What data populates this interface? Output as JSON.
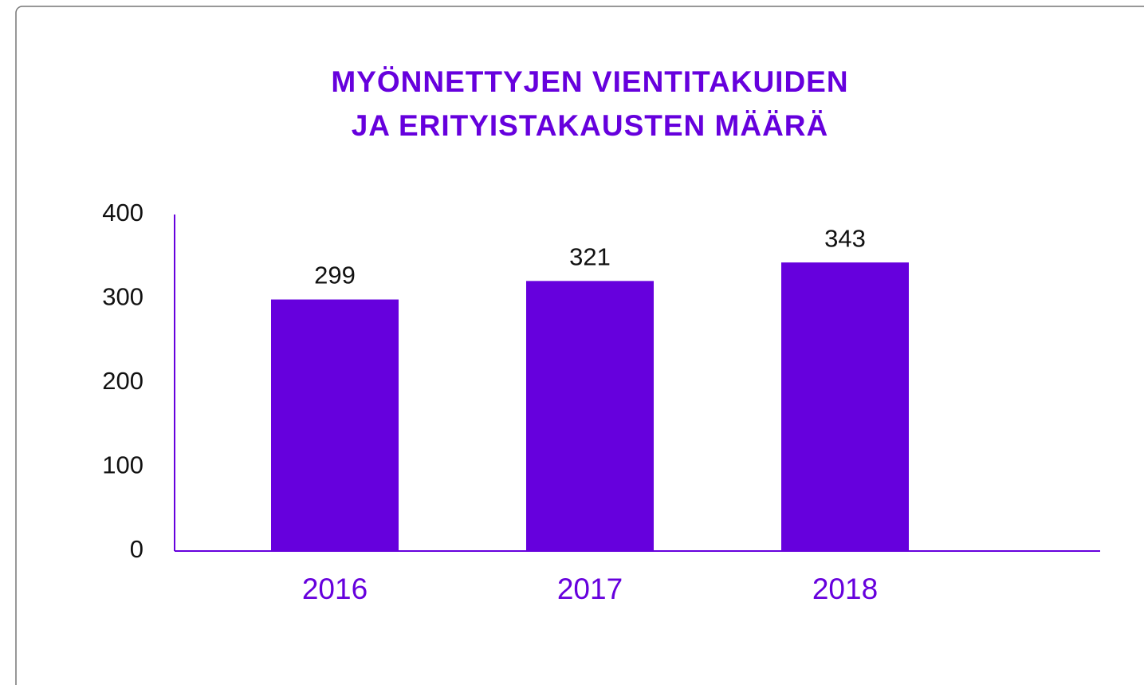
{
  "chart_data": {
    "type": "bar",
    "title": [
      "MYÖNNETTYJEN VIENTITAKUIDEN",
      "JA ERITYISTAKAUSTEN MÄÄRÄ"
    ],
    "categories": [
      "2016",
      "2017",
      "2018"
    ],
    "values": [
      299,
      321,
      343
    ],
    "color": "#6600dd",
    "ylim": [
      0,
      400
    ],
    "yticks": [
      0,
      100,
      200,
      300,
      400
    ],
    "grid": false
  }
}
